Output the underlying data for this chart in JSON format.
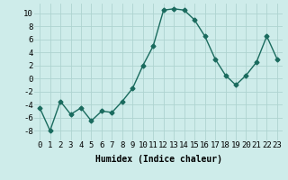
{
  "x": [
    0,
    1,
    2,
    3,
    4,
    5,
    6,
    7,
    8,
    9,
    10,
    11,
    12,
    13,
    14,
    15,
    16,
    17,
    18,
    19,
    20,
    21,
    22,
    23
  ],
  "y": [
    -4.5,
    -8,
    -3.5,
    -5.5,
    -4.5,
    -6.5,
    -5,
    -5.2,
    -3.5,
    -1.5,
    2,
    5,
    10.5,
    10.7,
    10.5,
    9,
    6.5,
    3,
    0.5,
    -1,
    0.5,
    2.5,
    6.5,
    3
  ],
  "line_color": "#1a6b5e",
  "marker": "D",
  "markersize": 2.5,
  "linewidth": 1.0,
  "bg_color": "#ceecea",
  "grid_color": "#aed4d0",
  "xlabel": "Humidex (Indice chaleur)",
  "ylabel": "",
  "xlim": [
    -0.5,
    23.5
  ],
  "ylim": [
    -9.5,
    11.5
  ],
  "yticks": [
    -8,
    -6,
    -4,
    -2,
    0,
    2,
    4,
    6,
    8,
    10
  ],
  "xtick_labels": [
    "0",
    "1",
    "2",
    "3",
    "4",
    "5",
    "6",
    "7",
    "8",
    "9",
    "10",
    "11",
    "12",
    "13",
    "14",
    "15",
    "16",
    "17",
    "18",
    "19",
    "20",
    "21",
    "22",
    "23"
  ],
  "xlabel_fontsize": 7,
  "tick_fontsize": 6.5
}
